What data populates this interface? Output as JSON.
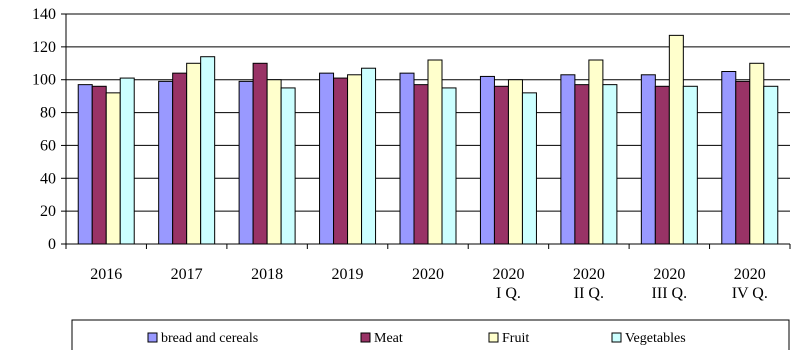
{
  "chart_data": {
    "type": "bar",
    "categories": [
      [
        "2016"
      ],
      [
        "2017"
      ],
      [
        "2018"
      ],
      [
        "2019"
      ],
      [
        "2020"
      ],
      [
        "2020",
        "I Q."
      ],
      [
        "2020",
        "II Q."
      ],
      [
        "2020",
        "III Q."
      ],
      [
        "2020",
        "IV Q."
      ]
    ],
    "series": [
      {
        "name": "bread and cereals",
        "color": "#9999ff",
        "values": [
          97,
          99,
          99,
          104,
          104,
          102,
          103,
          103,
          105
        ]
      },
      {
        "name": "Meat",
        "color": "#993366",
        "values": [
          96,
          104,
          110,
          101,
          97,
          96,
          97,
          96,
          99
        ]
      },
      {
        "name": "Fruit",
        "color": "#ffffcc",
        "values": [
          92,
          110,
          100,
          103,
          112,
          100,
          112,
          127,
          110
        ]
      },
      {
        "name": "Vegetables",
        "color": "#ccffff",
        "values": [
          101,
          114,
          95,
          107,
          95,
          92,
          97,
          96,
          96
        ]
      }
    ],
    "ylim": [
      0,
      140
    ],
    "yticks": [
      0,
      20,
      40,
      60,
      80,
      100,
      120,
      140
    ],
    "grid": true,
    "legend_position": "bottom"
  }
}
